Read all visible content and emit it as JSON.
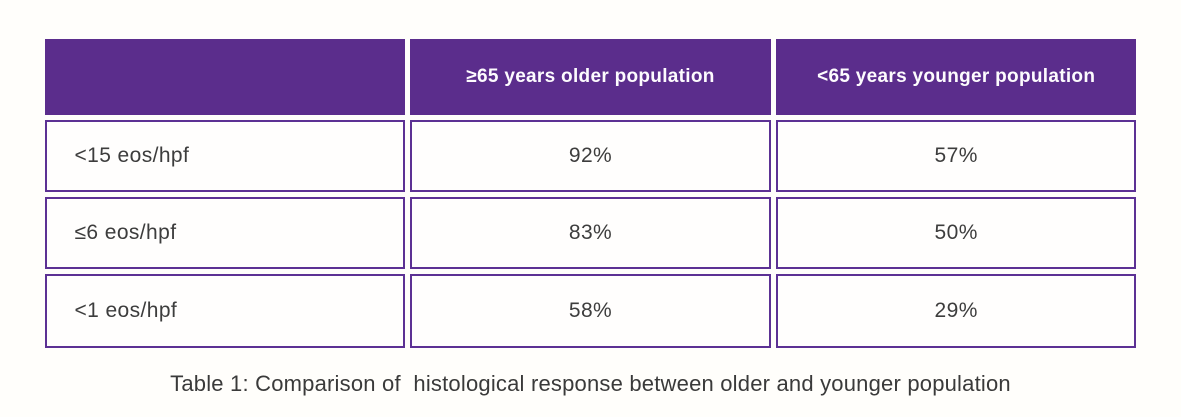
{
  "table": {
    "corner_label": "",
    "columns": [
      "≥65 years older population",
      "<65 years younger population"
    ],
    "rows": [
      {
        "label": "<15 eos/hpf",
        "values": [
          "92%",
          "57%"
        ]
      },
      {
        "label": "≤6 eos/hpf",
        "values": [
          "83%",
          "50%"
        ]
      },
      {
        "label": "<1 eos/hpf",
        "values": [
          "58%",
          "29%"
        ]
      }
    ]
  },
  "caption": {
    "text": "Table 1: Comparison of  histological response between older and younger population"
  },
  "colors": {
    "header_bg": "#5b2d8c",
    "border_purple": "#5c3194",
    "header_text": "#fdfbfe",
    "body_text": "#3d3d3d",
    "caption_text": "#3a3a3a",
    "page_bg": "#fffefb"
  }
}
